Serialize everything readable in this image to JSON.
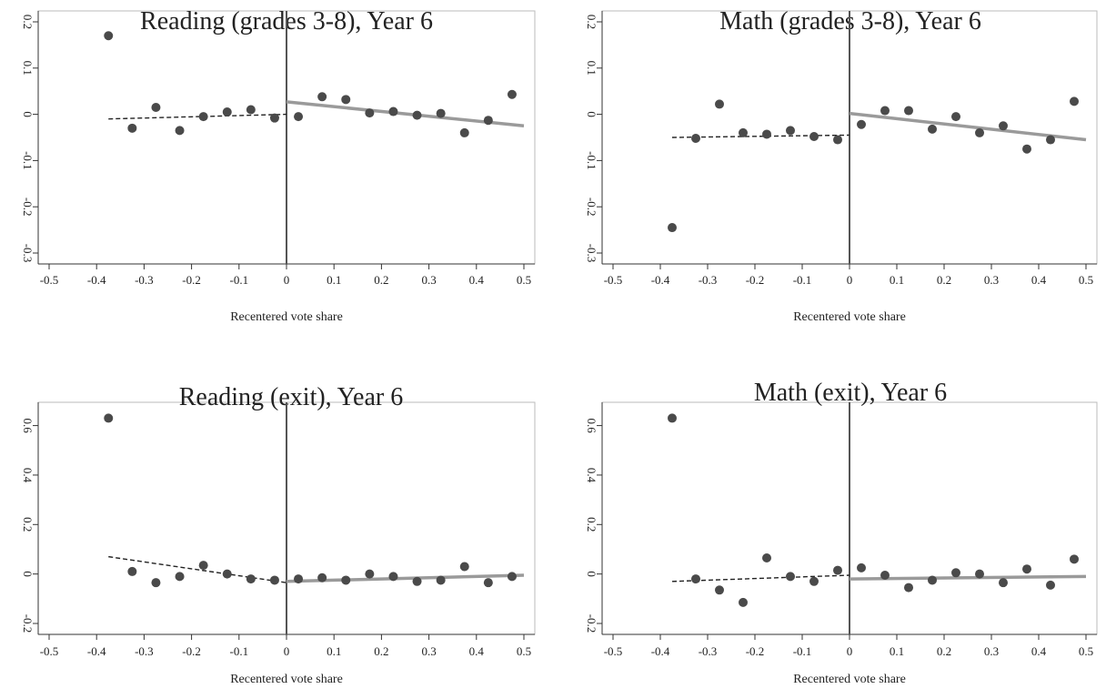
{
  "chart_data": [
    {
      "type": "scatter",
      "title": "Reading (grades 3-8), Year 6",
      "xlabel": "Recentered vote share",
      "ylabel": "",
      "xlim": [
        -0.5,
        0.5
      ],
      "ylim": [
        -0.3,
        0.2
      ],
      "xticks": [
        -0.5,
        -0.4,
        -0.3,
        -0.2,
        -0.1,
        0,
        0.1,
        0.2,
        0.3,
        0.4,
        0.5
      ],
      "xtick_labels": [
        "-0.5",
        "-0.4",
        "-0.3",
        "-0.2",
        "-0.1",
        "0",
        "0.1",
        "0.2",
        "0.3",
        "0.4",
        "0.5"
      ],
      "yticks": [
        -0.3,
        -0.2,
        -0.1,
        0,
        0.1,
        0.2
      ],
      "ytick_labels": [
        "-0.3",
        "-0.2",
        "-0.1",
        "0",
        "0.1",
        "0.2"
      ],
      "points": {
        "x": [
          -0.375,
          -0.325,
          -0.275,
          -0.225,
          -0.175,
          -0.125,
          -0.075,
          -0.025,
          0.025,
          0.075,
          0.125,
          0.175,
          0.225,
          0.275,
          0.325,
          0.375,
          0.425,
          0.475
        ],
        "y": [
          0.17,
          -0.03,
          0.015,
          -0.035,
          -0.005,
          0.005,
          0.01,
          -0.008,
          -0.005,
          0.038,
          0.032,
          0.003,
          0.006,
          -0.002,
          0.002,
          -0.04,
          -0.013,
          0.043
        ]
      },
      "fit_left": {
        "x": [
          -0.375,
          0
        ],
        "y": [
          -0.01,
          0.0
        ]
      },
      "fit_right": {
        "x": [
          0,
          0.5
        ],
        "y": [
          0.027,
          -0.025
        ]
      },
      "cutoff": 0,
      "grid": false
    },
    {
      "type": "scatter",
      "title": "Math (grades 3-8), Year 6",
      "xlabel": "Recentered vote share",
      "ylabel": "",
      "xlim": [
        -0.5,
        0.5
      ],
      "ylim": [
        -0.3,
        0.2
      ],
      "xticks": [
        -0.5,
        -0.4,
        -0.3,
        -0.2,
        -0.1,
        0,
        0.1,
        0.2,
        0.3,
        0.4,
        0.5
      ],
      "xtick_labels": [
        "-0.5",
        "-0.4",
        "-0.3",
        "-0.2",
        "-0.1",
        "0",
        "0.1",
        "0.2",
        "0.3",
        "0.4",
        "0.5"
      ],
      "yticks": [
        -0.3,
        -0.2,
        -0.1,
        0,
        0.1,
        0.2
      ],
      "ytick_labels": [
        "-0.3",
        "-0.2",
        "-0.1",
        "0",
        "0.1",
        "0.2"
      ],
      "points": {
        "x": [
          -0.375,
          -0.325,
          -0.275,
          -0.225,
          -0.175,
          -0.125,
          -0.075,
          -0.025,
          0.025,
          0.075,
          0.125,
          0.175,
          0.225,
          0.275,
          0.325,
          0.375,
          0.425,
          0.475
        ],
        "y": [
          -0.245,
          -0.052,
          0.022,
          -0.04,
          -0.043,
          -0.035,
          -0.048,
          -0.055,
          -0.022,
          0.008,
          0.008,
          -0.032,
          -0.005,
          -0.04,
          -0.025,
          -0.075,
          -0.055,
          0.028
        ]
      },
      "fit_left": {
        "x": [
          -0.375,
          0
        ],
        "y": [
          -0.05,
          -0.045
        ]
      },
      "fit_right": {
        "x": [
          0,
          0.5
        ],
        "y": [
          0.002,
          -0.055
        ]
      },
      "cutoff": 0,
      "grid": false
    },
    {
      "type": "scatter",
      "title": "Reading (exit), Year 6",
      "xlabel": "Recentered vote share",
      "ylabel": "",
      "xlim": [
        -0.5,
        0.5
      ],
      "ylim": [
        -0.2,
        0.65
      ],
      "xticks": [
        -0.5,
        -0.4,
        -0.3,
        -0.2,
        -0.1,
        0,
        0.1,
        0.2,
        0.3,
        0.4,
        0.5
      ],
      "xtick_labels": [
        "-0.5",
        "-0.4",
        "-0.3",
        "-0.2",
        "-0.1",
        "0",
        "0.1",
        "0.2",
        "0.3",
        "0.4",
        "0.5"
      ],
      "yticks": [
        -0.2,
        0,
        0.2,
        0.4,
        0.6
      ],
      "ytick_labels": [
        "-0.2",
        "0",
        "0.2",
        "0.4",
        "0.6"
      ],
      "points": {
        "x": [
          -0.375,
          -0.325,
          -0.275,
          -0.225,
          -0.175,
          -0.125,
          -0.075,
          -0.025,
          0.025,
          0.075,
          0.125,
          0.175,
          0.225,
          0.275,
          0.325,
          0.375,
          0.425,
          0.475
        ],
        "y": [
          0.63,
          0.01,
          -0.035,
          -0.01,
          0.035,
          0.0,
          -0.02,
          -0.025,
          -0.02,
          -0.015,
          -0.025,
          0.0,
          -0.01,
          -0.03,
          -0.025,
          0.03,
          -0.035,
          -0.01
        ]
      },
      "fit_left": {
        "x": [
          -0.375,
          0
        ],
        "y": [
          0.07,
          -0.035
        ]
      },
      "fit_right": {
        "x": [
          0,
          0.5
        ],
        "y": [
          -0.03,
          -0.005
        ]
      },
      "cutoff": 0,
      "grid": false
    },
    {
      "type": "scatter",
      "title": "Math (exit), Year 6",
      "xlabel": "Recentered vote share",
      "ylabel": "",
      "xlim": [
        -0.5,
        0.5
      ],
      "ylim": [
        -0.2,
        0.65
      ],
      "xticks": [
        -0.5,
        -0.4,
        -0.3,
        -0.2,
        -0.1,
        0,
        0.1,
        0.2,
        0.3,
        0.4,
        0.5
      ],
      "xtick_labels": [
        "-0.5",
        "-0.4",
        "-0.3",
        "-0.2",
        "-0.1",
        "0",
        "0.1",
        "0.2",
        "0.3",
        "0.4",
        "0.5"
      ],
      "yticks": [
        -0.2,
        0,
        0.2,
        0.4,
        0.6
      ],
      "ytick_labels": [
        "-0.2",
        "0",
        "0.2",
        "0.4",
        "0.6"
      ],
      "points": {
        "x": [
          -0.375,
          -0.325,
          -0.275,
          -0.225,
          -0.175,
          -0.125,
          -0.075,
          -0.025,
          0.025,
          0.075,
          0.125,
          0.175,
          0.225,
          0.275,
          0.325,
          0.375,
          0.425,
          0.475
        ],
        "y": [
          0.63,
          -0.02,
          -0.065,
          -0.115,
          0.065,
          -0.01,
          -0.03,
          0.015,
          0.025,
          -0.005,
          -0.055,
          -0.025,
          0.005,
          0.0,
          -0.035,
          0.02,
          -0.045,
          0.06
        ]
      },
      "fit_left": {
        "x": [
          -0.375,
          0
        ],
        "y": [
          -0.03,
          -0.005
        ]
      },
      "fit_right": {
        "x": [
          0,
          0.5
        ],
        "y": [
          -0.02,
          -0.01
        ]
      },
      "cutoff": 0,
      "grid": false
    }
  ],
  "colors": {
    "dots": "#4a4a4a",
    "fit_left": "#222222",
    "fit_right": "#9a9a9a",
    "axis": "#333333",
    "cutoff_line": "#555555",
    "frame": "#bbbbbb"
  }
}
